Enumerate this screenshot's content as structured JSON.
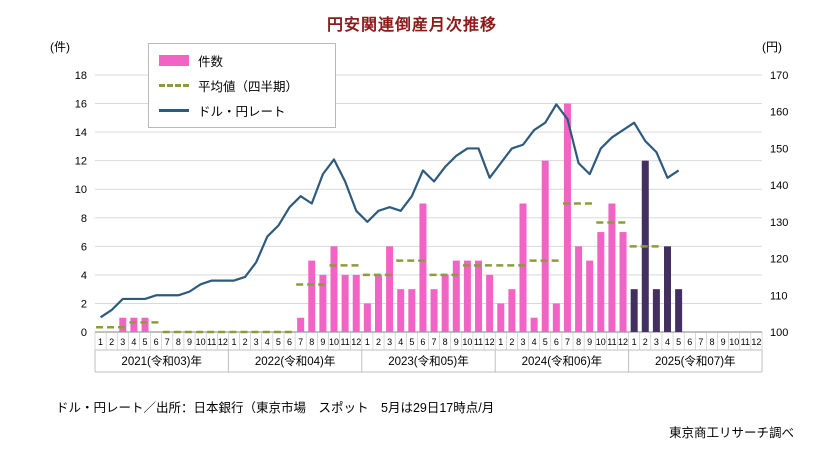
{
  "title": "円安関連倒産月次推移",
  "colors": {
    "title": "#8b1a1a",
    "bar": "#f163c5",
    "bar_highlight": "#433061",
    "quarterly_avg": "#8e9b3b",
    "rate_line": "#2e5b7d"
  },
  "footer": {
    "source_note": "ドル・円レート／出所：日本銀行（東京市場　スポット　5月は29日17時点/月",
    "credit": "東京商工リサーチ調べ"
  },
  "chart_data": {
    "type": "combo-bar-line",
    "title": "円安関連倒産月次推移",
    "left_axis": {
      "unit": "(件)",
      "min": 0,
      "max": 18,
      "step": 2
    },
    "right_axis": {
      "unit": "(円)",
      "min": 100,
      "max": 170,
      "step": 10
    },
    "month_labels": [
      "1",
      "2",
      "3",
      "4",
      "5",
      "6",
      "7",
      "8",
      "9",
      "10",
      "11",
      "12"
    ],
    "year_labels": [
      "2021(令和03)年",
      "2022(令和04)年",
      "2023(令和05)年",
      "2024(令和06)年",
      "2025(令和07)年"
    ],
    "bars": {
      "name": "件数",
      "color": "#f163c5",
      "highlight_color": "#433061",
      "highlight_start_index": 48,
      "values": [
        0,
        0,
        1,
        1,
        1,
        0,
        0,
        0,
        0,
        0,
        0,
        0,
        0,
        0,
        0,
        0,
        0,
        0,
        1,
        5,
        4,
        6,
        4,
        4,
        2,
        4,
        6,
        3,
        3,
        9,
        3,
        4,
        5,
        5,
        5,
        4,
        2,
        3,
        9,
        1,
        12,
        2,
        16,
        6,
        5,
        7,
        9,
        7,
        3,
        12,
        3,
        6,
        3,
        null,
        null,
        null,
        null,
        null,
        null,
        null
      ]
    },
    "quarterly_avg": {
      "name": "平均値（四半期）",
      "color": "#8e9b3b",
      "values": [
        0.33,
        0.67,
        0,
        0,
        0,
        0,
        3.33,
        4.67,
        4,
        5,
        4,
        4.67,
        4.67,
        5,
        9,
        7.67,
        6,
        null,
        null,
        null
      ]
    },
    "line": {
      "name": "ドル・円レート",
      "color": "#2e5b7d",
      "values": [
        104,
        106,
        109,
        109,
        109,
        110,
        110,
        110,
        111,
        113,
        114,
        114,
        114,
        115,
        119,
        126,
        129,
        134,
        137,
        135,
        143,
        147,
        141,
        133,
        130,
        133,
        134,
        133,
        137,
        144,
        141,
        145,
        148,
        150,
        150,
        142,
        146,
        150,
        151,
        155,
        157,
        162,
        158,
        146,
        143,
        150,
        153,
        155,
        157,
        152,
        149,
        142,
        144,
        null,
        null,
        null,
        null,
        null,
        null,
        null
      ]
    }
  }
}
